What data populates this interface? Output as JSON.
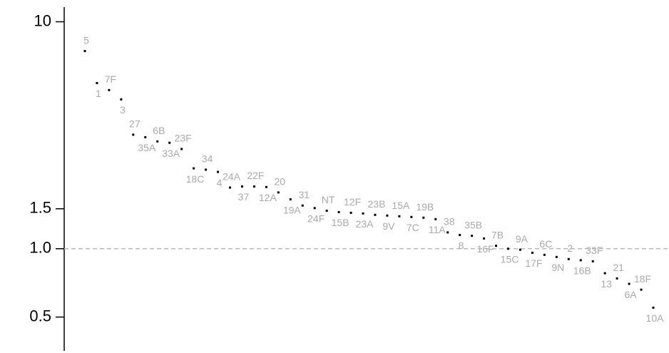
{
  "chart_data": {
    "type": "scatter",
    "log_y": true,
    "color": "#000000",
    "label_color": "#aaaaaa",
    "categories": [
      "5",
      "1",
      "7F",
      "3",
      "27",
      "35A",
      "6B",
      "33A",
      "23F",
      "18C",
      "34",
      "4",
      "24A",
      "37",
      "22F",
      "12A",
      "20",
      "19A",
      "31",
      "24F",
      "NT",
      "15B",
      "12F",
      "23A",
      "23B",
      "9V",
      "15A",
      "7C",
      "19B",
      "11A",
      "38",
      "8",
      "35B",
      "16F",
      "7B",
      "15C",
      "9A",
      "17F",
      "6C",
      "9N",
      "2",
      "16B",
      "33F",
      "13",
      "21",
      "6A",
      "18F",
      "10A"
    ],
    "values": [
      7.43,
      5.37,
      5.0,
      4.55,
      3.18,
      3.1,
      2.97,
      2.93,
      2.75,
      2.26,
      2.23,
      2.18,
      1.86,
      1.88,
      1.88,
      1.87,
      1.77,
      1.65,
      1.55,
      1.51,
      1.47,
      1.45,
      1.44,
      1.43,
      1.41,
      1.4,
      1.39,
      1.38,
      1.37,
      1.35,
      1.18,
      1.15,
      1.14,
      1.11,
      1.03,
      1.0,
      0.99,
      0.96,
      0.94,
      0.92,
      0.9,
      0.89,
      0.88,
      0.78,
      0.74,
      0.7,
      0.66,
      0.55
    ],
    "ylim": [
      0.36,
      11.6
    ],
    "yticks": [
      {
        "value": 0.5,
        "label": "0.5"
      },
      {
        "value": 1,
        "label": "1.0"
      },
      1.5,
      10
    ],
    "reference_line": 1
  }
}
